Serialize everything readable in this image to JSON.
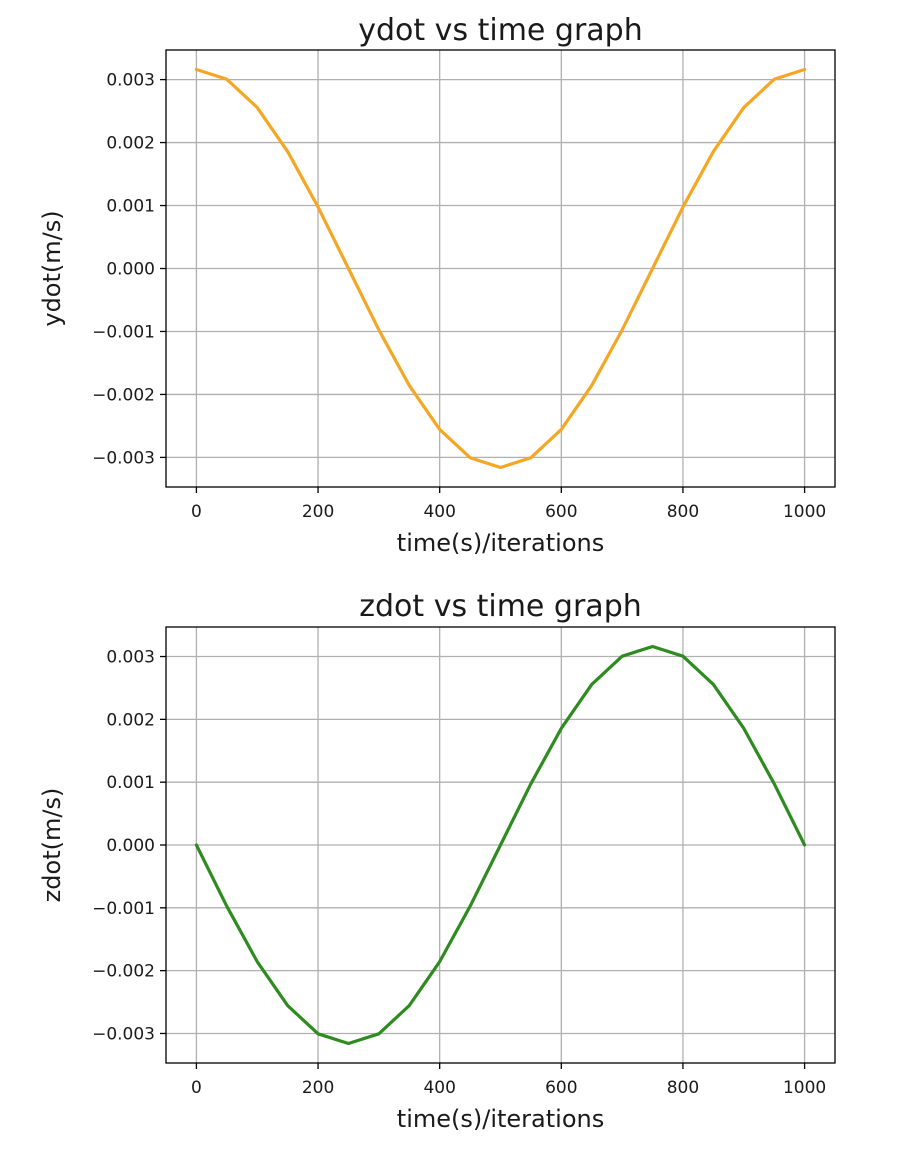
{
  "chart_data": [
    {
      "type": "line",
      "title": "ydot vs time graph",
      "xlabel": "time(s)/iterations",
      "ylabel": "ydot(m/s)",
      "xlim": [
        -50,
        1050
      ],
      "ylim": [
        -0.00347,
        0.00347
      ],
      "xticks": [
        0,
        200,
        400,
        600,
        800,
        1000
      ],
      "xtick_labels": [
        "0",
        "200",
        "400",
        "600",
        "800",
        "1000"
      ],
      "yticks": [
        0.003,
        0.002,
        0.001,
        0.0,
        -0.001,
        -0.002,
        -0.003
      ],
      "ytick_labels": [
        "0.003",
        "0.002",
        "0.001",
        "0.000",
        "−0.001",
        "−0.002",
        "−0.003"
      ],
      "grid": true,
      "series": [
        {
          "color": "#f5a623",
          "x": [
            0,
            50,
            100,
            150,
            200,
            250,
            300,
            350,
            400,
            450,
            500,
            550,
            600,
            650,
            700,
            750,
            800,
            850,
            900,
            950,
            1000
          ],
          "y": [
            0.00316,
            0.003005,
            0.002556,
            0.001857,
            0.000976,
            0.0,
            -0.000976,
            -0.001857,
            -0.002556,
            -0.003005,
            -0.00316,
            -0.003005,
            -0.002556,
            -0.001857,
            -0.000976,
            0.0,
            0.000976,
            0.001857,
            0.002556,
            0.003005,
            0.00316
          ]
        }
      ]
    },
    {
      "type": "line",
      "title": "zdot vs time graph",
      "xlabel": "time(s)/iterations",
      "ylabel": "zdot(m/s)",
      "xlim": [
        -50,
        1050
      ],
      "ylim": [
        -0.00347,
        0.00347
      ],
      "xticks": [
        0,
        200,
        400,
        600,
        800,
        1000
      ],
      "xtick_labels": [
        "0",
        "200",
        "400",
        "600",
        "800",
        "1000"
      ],
      "yticks": [
        0.003,
        0.002,
        0.001,
        0.0,
        -0.001,
        -0.002,
        -0.003
      ],
      "ytick_labels": [
        "0.003",
        "0.002",
        "0.001",
        "0.000",
        "−0.001",
        "−0.002",
        "−0.003"
      ],
      "grid": true,
      "series": [
        {
          "color": "#2e8b1f",
          "x": [
            0,
            50,
            100,
            150,
            200,
            250,
            300,
            350,
            400,
            450,
            500,
            550,
            600,
            650,
            700,
            750,
            800,
            850,
            900,
            950,
            1000
          ],
          "y": [
            0.0,
            -0.000976,
            -0.001857,
            -0.002556,
            -0.003005,
            -0.00316,
            -0.003005,
            -0.002556,
            -0.001857,
            -0.000976,
            0.0,
            0.000976,
            0.001857,
            0.002556,
            0.003005,
            0.00316,
            0.003005,
            0.002556,
            0.001857,
            0.000976,
            0.0
          ]
        }
      ]
    }
  ]
}
